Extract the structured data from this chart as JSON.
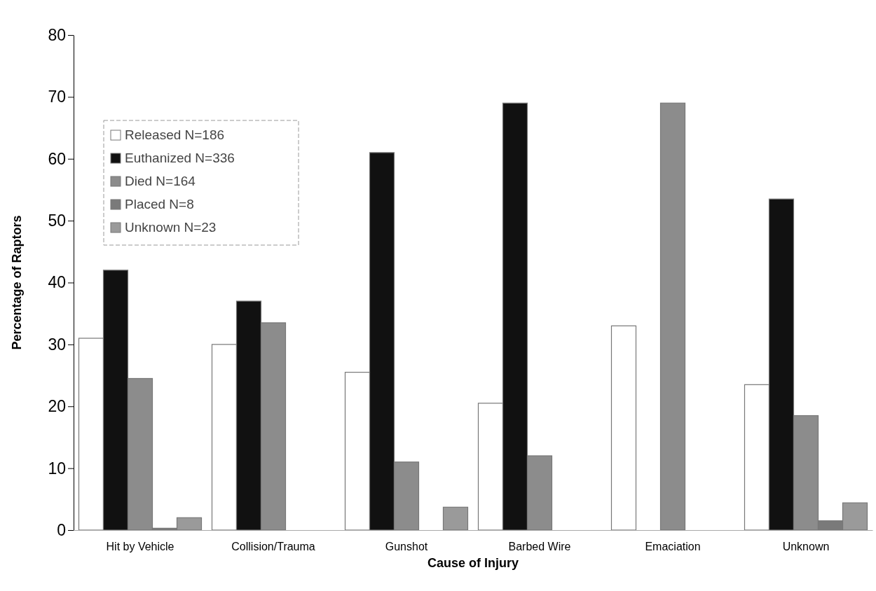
{
  "chart_data": {
    "type": "bar",
    "xlabel": "Cause of Injury",
    "ylabel": "Percentage of Raptors",
    "categories": [
      "Hit by Vehicle",
      "Collision/Trauma",
      "Gunshot",
      "Barbed Wire",
      "Emaciation",
      "Unknown"
    ],
    "series": [
      {
        "name": "Released  N=186",
        "color": "#ffffff",
        "values": [
          31,
          30,
          25.5,
          20.5,
          33,
          23.5
        ]
      },
      {
        "name": "Euthanized  N=336",
        "color": "#111111",
        "values": [
          42,
          37,
          61,
          69,
          0,
          53.5
        ]
      },
      {
        "name": "Died  N=164",
        "color": "#8c8c8c",
        "values": [
          24.5,
          33.5,
          11,
          12,
          69,
          18.5
        ]
      },
      {
        "name": "Placed  N=8",
        "color": "#7a7a7a",
        "values": [
          0.3,
          0,
          0,
          0,
          0,
          1.5
        ]
      },
      {
        "name": "Unknown  N=23",
        "color": "#9a9a9a",
        "values": [
          2,
          0,
          3.7,
          0,
          0,
          4.4
        ]
      }
    ],
    "ylim": [
      0,
      80
    ],
    "yticks": [
      0,
      10,
      20,
      30,
      40,
      50,
      60,
      70,
      80
    ],
    "legend": "top left"
  }
}
